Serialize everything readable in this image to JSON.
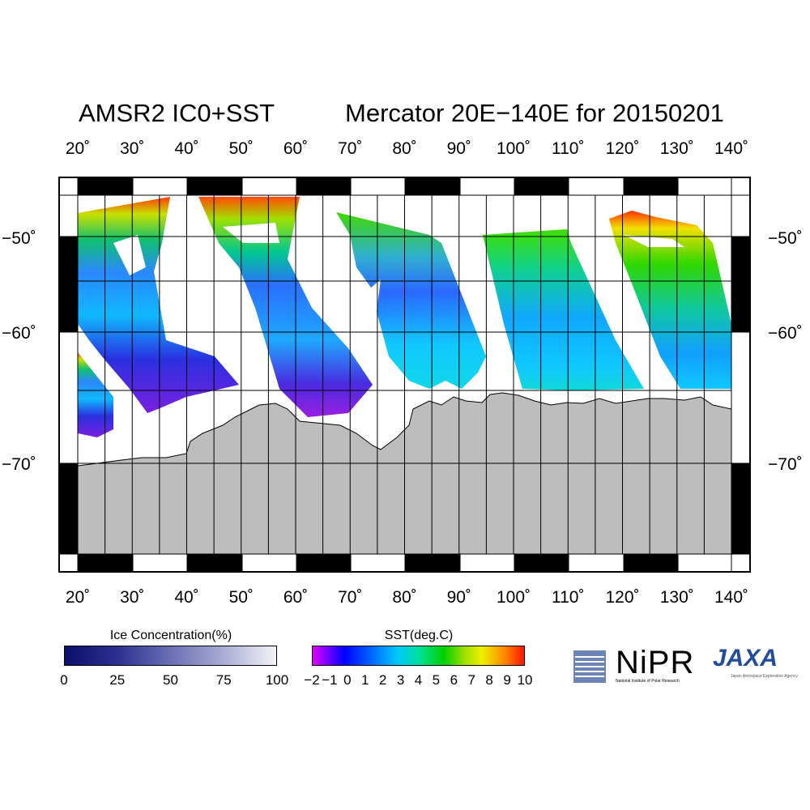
{
  "title": {
    "left": "AMSR2 IC0+SST",
    "right": "Mercator 20E−140E for 20150201"
  },
  "map": {
    "lon_labels": [
      "20˚",
      "30˚",
      "40˚",
      "50˚",
      "60˚",
      "70˚",
      "80˚",
      "90˚",
      "100˚",
      "110˚",
      "120˚",
      "130˚",
      "140˚"
    ],
    "lat_labels": [
      "−50˚",
      "−60˚",
      "−70˚"
    ],
    "projection": "Mercator",
    "lon_range": [
      20,
      140
    ],
    "land_color": "#bdbdbd"
  },
  "ice_colorbar": {
    "title": "Ice Concentration(%)",
    "ticks": [
      "0",
      "25",
      "50",
      "75",
      "100"
    ],
    "colors": [
      "#0a0f6a",
      "#f4f4fa"
    ]
  },
  "sst_colorbar": {
    "title": "SST(deg.C)",
    "ticks": [
      "−2",
      "−1",
      "0",
      "1",
      "2",
      "3",
      "4",
      "5",
      "6",
      "7",
      "8",
      "9",
      "10"
    ],
    "colors": [
      "#e000ff",
      "#0000ff",
      "#00c8ff",
      "#00d000",
      "#f0f000",
      "#ff1500"
    ]
  },
  "logos": {
    "nipr": "NiPR",
    "nipr_sub": "National Institute of Polar Research",
    "jaxa": "JAXA",
    "jaxa_sub": "Japan Aerospace Exploration Agency"
  }
}
